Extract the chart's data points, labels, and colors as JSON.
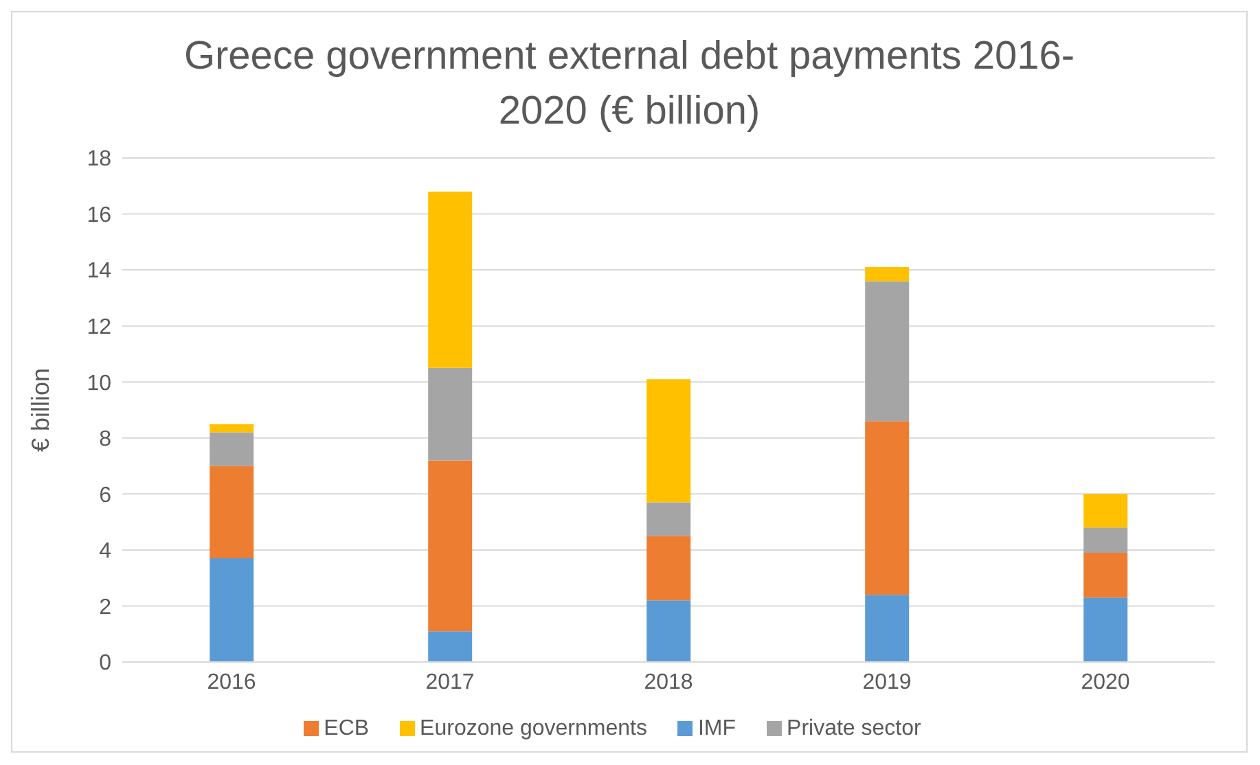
{
  "chart_data": {
    "type": "bar",
    "title": "Greece government external debt payments 2016-2020 (€ billion)",
    "ylabel": "€ billion",
    "categories": [
      "2016",
      "2017",
      "2018",
      "2019",
      "2020"
    ],
    "stacked": true,
    "series": [
      {
        "name": "IMF",
        "color": "#5b9bd5",
        "values": [
          3.7,
          1.1,
          2.2,
          2.4,
          2.3
        ]
      },
      {
        "name": "ECB",
        "color": "#ed7d31",
        "values": [
          3.3,
          6.1,
          2.3,
          6.2,
          1.6
        ]
      },
      {
        "name": "Private sector",
        "color": "#a5a5a5",
        "values": [
          1.2,
          3.3,
          1.2,
          5.0,
          0.9
        ]
      },
      {
        "name": "Eurozone governments",
        "color": "#ffc000",
        "values": [
          0.3,
          6.3,
          4.4,
          0.5,
          1.2
        ]
      }
    ],
    "ylim": [
      0,
      18
    ],
    "yticks": [
      0,
      2,
      4,
      6,
      8,
      10,
      12,
      14,
      16,
      18
    ],
    "grid": "y",
    "legend": "bottom"
  }
}
